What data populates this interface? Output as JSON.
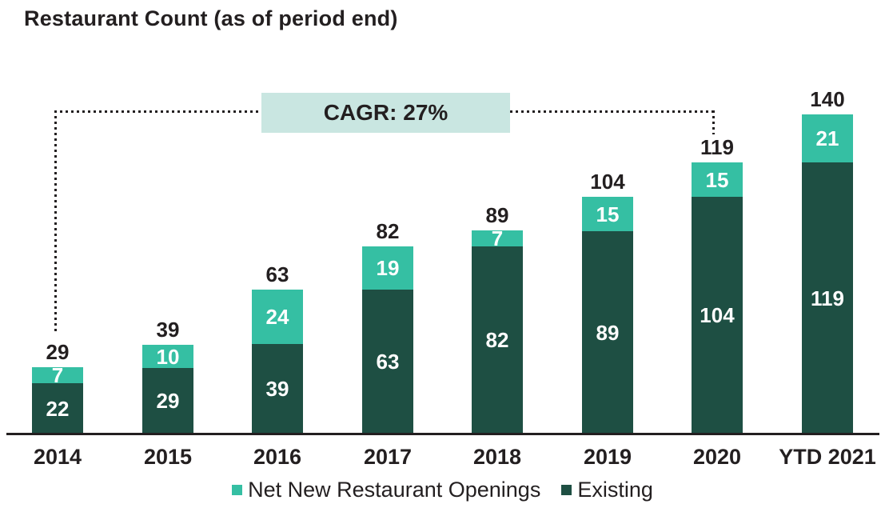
{
  "chart_data": {
    "type": "bar",
    "stacked": true,
    "title": "Restaurant Count (as of period end)",
    "categories": [
      "2014",
      "2015",
      "2016",
      "2017",
      "2018",
      "2019",
      "2020",
      "YTD 2021"
    ],
    "series": [
      {
        "name": "Net New Restaurant Openings",
        "color": "#35bfa3",
        "values": [
          7,
          10,
          24,
          19,
          7,
          15,
          15,
          21
        ]
      },
      {
        "name": "Existing",
        "color": "#1e4f43",
        "values": [
          22,
          29,
          39,
          63,
          82,
          89,
          104,
          119
        ]
      }
    ],
    "totals": [
      29,
      39,
      63,
      82,
      89,
      104,
      119,
      140
    ],
    "ylim": [
      0,
      140
    ],
    "grid": false,
    "legend_position": "bottom",
    "value_labels": "white inside segments, bold totals above bars",
    "annotation": {
      "label": "CAGR: 27%",
      "from_category": "2014",
      "to_category": "2020",
      "box_color": "#c9e6e1"
    }
  },
  "legend": [
    {
      "label": "Net New Restaurant Openings",
      "color": "#35bfa3"
    },
    {
      "label": "Existing",
      "color": "#1e4f43"
    }
  ],
  "colors": {
    "text": "#231f20",
    "axis": "#231f20",
    "bar_value_text": "#ffffff",
    "dotted_line": "#231f20"
  }
}
